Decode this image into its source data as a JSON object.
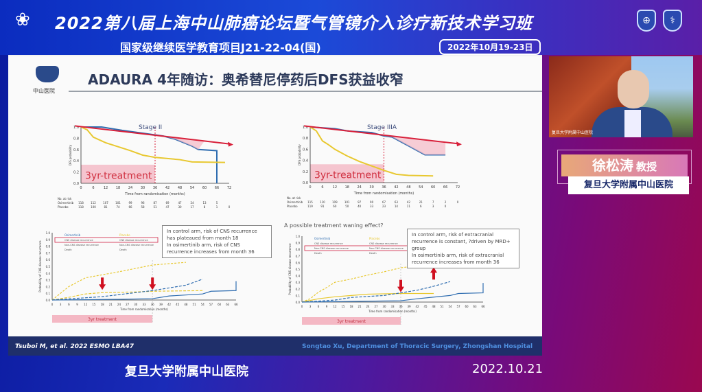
{
  "header": {
    "title": "2022第八届上海中山肺癌论坛暨气管镜介入诊疗新技术学习班",
    "subtitle": "国家级继续医学教育项目J21-22-04(国)",
    "dates": "2022年10月19-23日",
    "logo_icon": "event-logo-icon",
    "badge_icons": [
      "hospital-badge-icon",
      "medical-badge-icon"
    ]
  },
  "slide": {
    "title": "ADAURA 4年随访：奥希替尼停药后DFS获益收窄",
    "logo_text": "中山医院",
    "citation": "Tsuboi M, et al. 2022 ESMO LBA47",
    "credit": "Songtao Xu, Department of Thoracic Surgery, Zhongshan Hospital",
    "right_bottom_heading": "A possible treatment waning effect?",
    "notes_left": [
      "In control arm, risk of CNS recurrence has plateaued from month 18",
      "In osimertinib arm, risk of CNS recurrence increases from month 36"
    ],
    "notes_right": [
      "In control arm, risk of extracranial recurrence is constant, ?driven by MRD+ group",
      "In osimertinib arm, risk of extracranial recurrence increases from month 36"
    ],
    "legend": {
      "osimertinib": "Osimertinib",
      "placebo": "Placebo",
      "items": [
        "CNS disease recurrence",
        "Non-CNS disease recurrence",
        "Death"
      ]
    },
    "colors": {
      "osimertinib": "#2f6db0",
      "placebo": "#e8c830",
      "trend": "#d8203a",
      "shade": "#f4b8c4"
    }
  },
  "chart_data": [
    {
      "type": "line",
      "title": "Stage II",
      "xlabel": "Time from randomisation (months)",
      "ylabel": "DFS probability",
      "xlim": [
        0,
        72
      ],
      "ylim": [
        0,
        1
      ],
      "xticks": [
        0,
        6,
        12,
        18,
        24,
        30,
        36,
        42,
        48,
        54,
        60,
        66,
        72
      ],
      "yticks": [
        0,
        0.2,
        0.4,
        0.6,
        0.8,
        1.0
      ],
      "annotation": "3yr-treatment",
      "series": [
        {
          "name": "Osimertinib",
          "points": [
            [
              0,
              1
            ],
            [
              10,
              1
            ],
            [
              20,
              0.94
            ],
            [
              36,
              0.86
            ],
            [
              40,
              0.84
            ],
            [
              46,
              0.78
            ],
            [
              50,
              0.72
            ],
            [
              54,
              0.66
            ],
            [
              57,
              0.6
            ],
            [
              66,
              0.58
            ],
            [
              66,
              0
            ]
          ]
        },
        {
          "name": "Placebo",
          "points": [
            [
              0,
              1
            ],
            [
              3,
              0.95
            ],
            [
              6,
              0.82
            ],
            [
              12,
              0.72
            ],
            [
              18,
              0.65
            ],
            [
              24,
              0.58
            ],
            [
              30,
              0.5
            ],
            [
              36,
              0.46
            ],
            [
              42,
              0.44
            ],
            [
              48,
              0.42
            ],
            [
              54,
              0.38
            ],
            [
              70,
              0.37
            ]
          ]
        }
      ],
      "trend": [
        [
          -3,
          1.02
        ],
        [
          72,
          0.7
        ]
      ],
      "at_risk": {
        "label": "No. at risk",
        "rows": [
          {
            "name": "Osimertinib",
            "values": [
              "118",
              "112",
              "107",
              "101",
              "99",
              "96",
              "87",
              "69",
              "47",
              "24",
              "13",
              "5",
              ""
            ]
          },
          {
            "name": "Placebo",
            "values": [
              "118",
              "100",
              "81",
              "74",
              "66",
              "58",
              "51",
              "47",
              "30",
              "17",
              "8",
              "1",
              "0"
            ]
          }
        ]
      }
    },
    {
      "type": "line",
      "title": "Stage IIIA",
      "xlabel": "Time from randomisation (months)",
      "ylabel": "DFS probability",
      "xlim": [
        0,
        72
      ],
      "ylim": [
        0,
        1
      ],
      "xticks": [
        0,
        6,
        12,
        18,
        24,
        30,
        36,
        42,
        48,
        54,
        60,
        66,
        72
      ],
      "yticks": [
        0,
        0.2,
        0.4,
        0.6,
        0.8,
        1.0
      ],
      "annotation": "3yr-treatment",
      "series": [
        {
          "name": "Osimertinib",
          "points": [
            [
              0,
              1
            ],
            [
              12,
              0.97
            ],
            [
              18,
              0.93
            ],
            [
              30,
              0.9
            ],
            [
              36,
              0.84
            ],
            [
              40,
              0.82
            ],
            [
              44,
              0.74
            ],
            [
              48,
              0.66
            ],
            [
              52,
              0.58
            ],
            [
              56,
              0.5
            ],
            [
              66,
              0.5
            ]
          ]
        },
        {
          "name": "Placebo",
          "points": [
            [
              0,
              1
            ],
            [
              3,
              0.93
            ],
            [
              6,
              0.75
            ],
            [
              9,
              0.68
            ],
            [
              12,
              0.6
            ],
            [
              18,
              0.48
            ],
            [
              24,
              0.38
            ],
            [
              30,
              0.3
            ],
            [
              36,
              0.22
            ],
            [
              42,
              0.15
            ],
            [
              48,
              0.13
            ],
            [
              60,
              0.12
            ]
          ]
        }
      ],
      "trend": [
        [
          -3,
          1.02
        ],
        [
          72,
          0.7
        ]
      ],
      "at_risk": {
        "label": "No. at risk",
        "rows": [
          {
            "name": "Osimertinib",
            "values": [
              "115",
              "110",
              "109",
              "101",
              "97",
              "90",
              "67",
              "63",
              "42",
              "21",
              "7",
              "2",
              "0"
            ]
          },
          {
            "name": "Placebo",
            "values": [
              "119",
              "91",
              "60",
              "50",
              "40",
              "33",
              "23",
              "14",
              "11",
              "6",
              "3",
              "0",
              ""
            ]
          }
        ]
      }
    },
    {
      "type": "line",
      "title": "",
      "xlabel": "Time from randomisation (months)",
      "ylabel": "Probability of CNS disease recurrence",
      "xlim": [
        0,
        66
      ],
      "ylim": [
        0,
        1
      ],
      "xticks": [
        0,
        3,
        6,
        9,
        12,
        15,
        18,
        21,
        24,
        27,
        30,
        33,
        36,
        39,
        42,
        45,
        48,
        51,
        54,
        57,
        60,
        63,
        66
      ],
      "yticks": [
        0,
        0.1,
        0.2,
        0.3,
        0.4,
        0.5,
        0.6,
        0.7,
        0.8,
        0.9,
        1.0
      ],
      "annotation": "3yr treatment",
      "series": [
        {
          "name": "Placebo CNS",
          "points": [
            [
              0,
              0
            ],
            [
              6,
              0.04
            ],
            [
              12,
              0.09
            ],
            [
              18,
              0.11
            ],
            [
              30,
              0.12
            ],
            [
              36,
              0.13
            ],
            [
              54,
              0.14
            ]
          ]
        },
        {
          "name": "Placebo Non-CNS",
          "points": [
            [
              0,
              0
            ],
            [
              6,
              0.2
            ],
            [
              12,
              0.33
            ],
            [
              24,
              0.42
            ],
            [
              36,
              0.52
            ],
            [
              48,
              0.56
            ]
          ]
        },
        {
          "name": "Osimertinib CNS",
          "points": [
            [
              0,
              0
            ],
            [
              24,
              0.01
            ],
            [
              36,
              0.02
            ],
            [
              42,
              0.06
            ],
            [
              54,
              0.09
            ],
            [
              57,
              0.13
            ],
            [
              66,
              0.14
            ],
            [
              66,
              0.28
            ]
          ]
        },
        {
          "name": "Osimertinib Non-CNS",
          "points": [
            [
              0,
              0
            ],
            [
              18,
              0.05
            ],
            [
              36,
              0.14
            ],
            [
              48,
              0.22
            ],
            [
              54,
              0.31
            ]
          ]
        }
      ],
      "arrows": [
        {
          "x": 18,
          "dir": "down"
        },
        {
          "x": 36,
          "dir": "down"
        }
      ]
    },
    {
      "type": "line",
      "title": "A possible treatment waning effect?",
      "xlabel": "Time from randomisation (months)",
      "ylabel": "Probability of CNS disease recurrence",
      "xlim": [
        0,
        66
      ],
      "ylim": [
        0,
        1
      ],
      "xticks": [
        0,
        3,
        6,
        9,
        12,
        15,
        18,
        21,
        24,
        27,
        30,
        33,
        36,
        39,
        42,
        45,
        48,
        51,
        54,
        57,
        60,
        63,
        66
      ],
      "yticks": [
        0,
        0.1,
        0.2,
        0.3,
        0.4,
        0.5,
        0.6,
        0.7,
        0.8,
        0.9,
        1.0
      ],
      "annotation": "3yr treatment",
      "series": [
        {
          "name": "Placebo Non-CNS",
          "points": [
            [
              0,
              0
            ],
            [
              3,
              0.05
            ],
            [
              6,
              0.15
            ],
            [
              9,
              0.22
            ],
            [
              12,
              0.3
            ],
            [
              18,
              0.35
            ],
            [
              24,
              0.41
            ],
            [
              30,
              0.46
            ],
            [
              36,
              0.52
            ],
            [
              42,
              0.55
            ],
            [
              48,
              0.57
            ]
          ]
        },
        {
          "name": "Placebo CNS",
          "points": [
            [
              0,
              0
            ],
            [
              6,
              0.05
            ],
            [
              12,
              0.08
            ],
            [
              18,
              0.1
            ],
            [
              24,
              0.12
            ],
            [
              36,
              0.13
            ],
            [
              48,
              0.13
            ]
          ]
        },
        {
          "name": "Osimertinib Non-CNS",
          "points": [
            [
              0,
              0
            ],
            [
              12,
              0.03
            ],
            [
              18,
              0.07
            ],
            [
              30,
              0.1
            ],
            [
              36,
              0.14
            ],
            [
              42,
              0.18
            ],
            [
              48,
              0.24
            ],
            [
              54,
              0.31
            ]
          ]
        },
        {
          "name": "Osimertinib CNS",
          "points": [
            [
              0,
              0
            ],
            [
              36,
              0.02
            ],
            [
              42,
              0.05
            ],
            [
              54,
              0.1
            ],
            [
              57,
              0.13
            ],
            [
              66,
              0.14
            ],
            [
              66,
              0.29
            ]
          ]
        }
      ],
      "arrows": [
        {
          "x": 36,
          "dir": "down"
        },
        {
          "x": 48,
          "dir": "up"
        }
      ]
    }
  ],
  "speaker": {
    "name": "徐松涛",
    "title": "教授",
    "institution": "复旦大学附属中山医院",
    "video_caption": "复旦大学附属中山医院"
  },
  "footer": {
    "institution": "复旦大学附属中山医院",
    "date": "2022.10.21"
  }
}
